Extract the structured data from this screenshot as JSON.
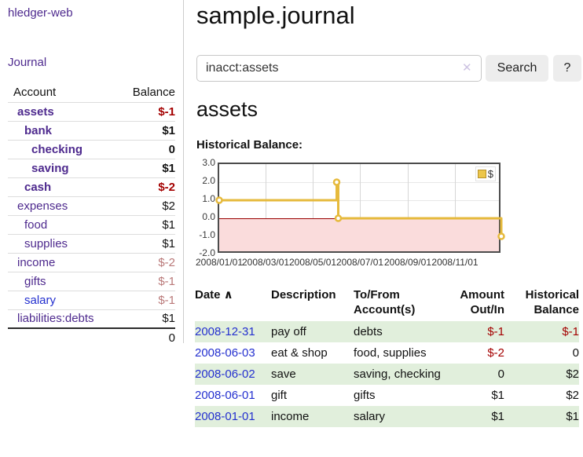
{
  "colors": {
    "accent_purple": "#4e2a8e",
    "link_blue": "#2430cf",
    "negative_strong": "#a40000",
    "negative_soft": "#b97878",
    "row_stripe_green": "#e1efdc",
    "chart_line_gold": "#e6ba3c",
    "chart_negative_fill": "#fadcdc",
    "chart_zero_line": "#990000"
  },
  "app": {
    "brand": "hledger-web",
    "nav_journal": "Journal"
  },
  "sidebar": {
    "headers": {
      "account": "Account",
      "balance": "Balance"
    },
    "accounts": [
      {
        "name": "assets",
        "depth": 1,
        "balance": "$-1",
        "bold": true,
        "amount_class": "neg-strong"
      },
      {
        "name": "bank",
        "depth": 2,
        "balance": "$1",
        "bold": true,
        "amount_class": ""
      },
      {
        "name": "checking",
        "depth": 3,
        "balance": "0",
        "bold": true,
        "amount_class": ""
      },
      {
        "name": "saving",
        "depth": 3,
        "balance": "$1",
        "bold": true,
        "amount_class": ""
      },
      {
        "name": "cash",
        "depth": 2,
        "balance": "$-2",
        "bold": true,
        "amount_class": "neg-strong"
      },
      {
        "name": "expenses",
        "depth": 1,
        "balance": "$2",
        "bold": false,
        "amount_class": ""
      },
      {
        "name": "food",
        "depth": 2,
        "balance": "$1",
        "bold": false,
        "amount_class": ""
      },
      {
        "name": "supplies",
        "depth": 2,
        "balance": "$1",
        "bold": false,
        "amount_class": ""
      },
      {
        "name": "income",
        "depth": 1,
        "balance": "$-2",
        "bold": false,
        "amount_class": "neg-soft"
      },
      {
        "name": "gifts",
        "depth": 2,
        "balance": "$-1",
        "bold": false,
        "amount_class": "neg-soft"
      },
      {
        "name": "salary",
        "depth": 2,
        "balance": "$-1",
        "bold": false,
        "amount_class": "neg-soft",
        "blue_link": true
      },
      {
        "name": "liabilities:debts",
        "depth": 1,
        "balance": "$1",
        "bold": false,
        "amount_class": ""
      }
    ],
    "total": "0"
  },
  "header": {
    "title": "sample.journal"
  },
  "search": {
    "value": "inacct:assets",
    "clear_icon": "✕",
    "button_label": "Search",
    "help_label": "?"
  },
  "account_page": {
    "heading": "assets",
    "chart_label": "Historical Balance:"
  },
  "chart_data": {
    "type": "line",
    "step": true,
    "title": "Historical Balance:",
    "legend": {
      "label": "$",
      "position": "top-right"
    },
    "x_range": [
      "2008-01-01",
      "2009-01-01"
    ],
    "ylim": [
      -2,
      3
    ],
    "y_ticks": [
      "3.0",
      "2.0",
      "1.0",
      "0.0",
      "-1.0",
      "-2.0"
    ],
    "x_ticks": [
      "2008/01/01",
      "2008/03/01",
      "2008/05/01",
      "2008/07/01",
      "2008/09/01",
      "2008/11/01"
    ],
    "series": [
      {
        "name": "$",
        "points": [
          [
            "2008-01-01",
            1
          ],
          [
            "2008-06-01",
            2
          ],
          [
            "2008-06-03",
            0
          ],
          [
            "2008-12-31",
            -1
          ]
        ]
      }
    ],
    "grid": true,
    "negative_region_shaded": true
  },
  "register": {
    "columns": [
      {
        "label": "Date",
        "sort_icon": "∧"
      },
      {
        "label": "Description"
      },
      {
        "label": "To/From Account(s)"
      },
      {
        "label": "Amount Out/In"
      },
      {
        "label": "Historical Balance"
      }
    ],
    "rows": [
      {
        "date": "2008-12-31",
        "description": "pay off",
        "accounts": "debts",
        "amount": "$-1",
        "balance": "$-1",
        "amount_neg": true,
        "balance_neg": true,
        "shaded": true
      },
      {
        "date": "2008-06-03",
        "description": "eat & shop",
        "accounts": "food, supplies",
        "amount": "$-2",
        "balance": "0",
        "amount_neg": true,
        "balance_neg": false,
        "shaded": false
      },
      {
        "date": "2008-06-02",
        "description": "save",
        "accounts": "saving, checking",
        "amount": "0",
        "balance": "$2",
        "amount_neg": false,
        "balance_neg": false,
        "shaded": true
      },
      {
        "date": "2008-06-01",
        "description": "gift",
        "accounts": "gifts",
        "amount": "$1",
        "balance": "$2",
        "amount_neg": false,
        "balance_neg": false,
        "shaded": false
      },
      {
        "date": "2008-01-01",
        "description": "income",
        "accounts": "salary",
        "amount": "$1",
        "balance": "$1",
        "amount_neg": false,
        "balance_neg": false,
        "shaded": true
      }
    ]
  }
}
